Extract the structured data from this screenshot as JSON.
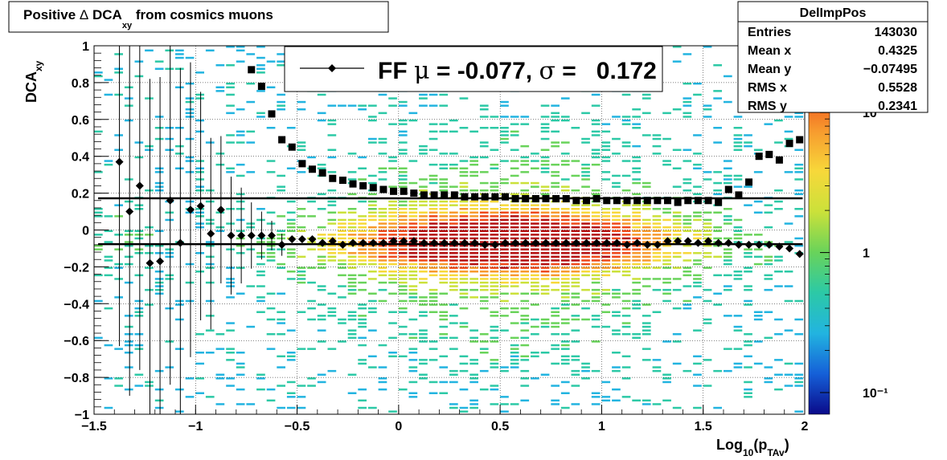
{
  "title": {
    "prefix": "Positive ",
    "delta": "Δ",
    "main": " DCA",
    "sub": "xy",
    "suffix": " from cosmics muons"
  },
  "stats": {
    "name": "DelImpPos",
    "rows": [
      {
        "label": "Entries",
        "value": "143030"
      },
      {
        "label": "Mean x",
        "value": "0.4325"
      },
      {
        "label": "Mean y",
        "value": "−0.07495"
      },
      {
        "label": "RMS x",
        "value": "0.5528"
      },
      {
        "label": "RMS y",
        "value": "0.2341"
      }
    ]
  },
  "legend": {
    "prefix": "FF ",
    "mu": "μ",
    "mid": " = -0.077, ",
    "sigma": "σ",
    "suffix": " =   0.172"
  },
  "axes": {
    "ylabel": "DCA",
    "ylabel_sub": "xy",
    "xlabel_a": "Log",
    "xlabel_b": "10",
    "xlabel_c": "(p",
    "xlabel_d": "TAv",
    "xlabel_e": ")"
  },
  "colors": {
    "markers": "#000000",
    "palette": [
      "#0a0a8a",
      "#1560d8",
      "#22b4e0",
      "#2cc9a6",
      "#69d35a",
      "#cbe13a",
      "#f7d83a",
      "#f79a2e",
      "#ee4a1a",
      "#b41010"
    ]
  },
  "chart_data": {
    "type": "heatmap",
    "xlim": [
      -1.5,
      2
    ],
    "ylim": [
      -1,
      1
    ],
    "x_ticks": [
      "−1.5",
      "−1",
      "−0.5",
      "0",
      "0.5",
      "1",
      "1.5",
      "2"
    ],
    "y_ticks": [
      "−1",
      "−0.8",
      "−0.6",
      "−0.4",
      "−0.2",
      "0",
      "0.2",
      "0.4",
      "0.6",
      "0.8",
      "1"
    ],
    "z_scale": "log",
    "z_ticks": [
      "10",
      "1",
      "10⁻¹"
    ],
    "z_range": [
      0.07,
      30
    ],
    "mean_line": -0.077,
    "sigma_line": 0.172,
    "mean_points": [
      [
        -1.375,
        0.37
      ],
      [
        -1.325,
        0.1
      ],
      [
        -1.275,
        0.24
      ],
      [
        -1.225,
        -0.18
      ],
      [
        -1.175,
        -0.17
      ],
      [
        -1.125,
        0.16
      ],
      [
        -1.075,
        -0.07
      ],
      [
        -1.025,
        0.11
      ],
      [
        -0.975,
        0.13
      ],
      [
        -0.925,
        -0.02
      ],
      [
        -0.875,
        0.11
      ],
      [
        -0.825,
        -0.03
      ],
      [
        -0.775,
        -0.03
      ],
      [
        -0.725,
        -0.03
      ],
      [
        -0.675,
        -0.03
      ],
      [
        -0.625,
        -0.03
      ],
      [
        -0.575,
        -0.08
      ],
      [
        -0.525,
        -0.05
      ],
      [
        -0.475,
        -0.05
      ],
      [
        -0.425,
        -0.05
      ],
      [
        -0.375,
        -0.07
      ],
      [
        -0.325,
        -0.06
      ],
      [
        -0.275,
        -0.08
      ],
      [
        -0.225,
        -0.07
      ],
      [
        -0.175,
        -0.07
      ],
      [
        -0.125,
        -0.07
      ],
      [
        -0.075,
        -0.07
      ],
      [
        -0.025,
        -0.06
      ],
      [
        0.025,
        -0.06
      ],
      [
        0.075,
        -0.06
      ],
      [
        0.125,
        -0.07
      ],
      [
        0.175,
        -0.07
      ],
      [
        0.225,
        -0.07
      ],
      [
        0.275,
        -0.07
      ],
      [
        0.325,
        -0.07
      ],
      [
        0.375,
        -0.07
      ],
      [
        0.425,
        -0.08
      ],
      [
        0.475,
        -0.08
      ],
      [
        0.525,
        -0.07
      ],
      [
        0.575,
        -0.07
      ],
      [
        0.625,
        -0.07
      ],
      [
        0.675,
        -0.07
      ],
      [
        0.725,
        -0.07
      ],
      [
        0.775,
        -0.07
      ],
      [
        0.825,
        -0.07
      ],
      [
        0.875,
        -0.07
      ],
      [
        0.925,
        -0.07
      ],
      [
        0.975,
        -0.07
      ],
      [
        1.025,
        -0.07
      ],
      [
        1.075,
        -0.07
      ],
      [
        1.125,
        -0.08
      ],
      [
        1.175,
        -0.07
      ],
      [
        1.225,
        -0.08
      ],
      [
        1.275,
        -0.08
      ],
      [
        1.325,
        -0.06
      ],
      [
        1.375,
        -0.06
      ],
      [
        1.425,
        -0.06
      ],
      [
        1.475,
        -0.07
      ],
      [
        1.525,
        -0.06
      ],
      [
        1.575,
        -0.07
      ],
      [
        1.625,
        -0.07
      ],
      [
        1.675,
        -0.08
      ],
      [
        1.725,
        -0.08
      ],
      [
        1.775,
        -0.08
      ],
      [
        1.825,
        -0.08
      ],
      [
        1.875,
        -0.09
      ],
      [
        1.925,
        -0.1
      ],
      [
        1.975,
        -0.13
      ]
    ],
    "sigma_points": [
      [
        -0.725,
        0.87
      ],
      [
        -0.675,
        0.78
      ],
      [
        -0.625,
        0.63
      ],
      [
        -0.575,
        0.49
      ],
      [
        -0.525,
        0.45
      ],
      [
        -0.475,
        0.36
      ],
      [
        -0.425,
        0.33
      ],
      [
        -0.375,
        0.31
      ],
      [
        -0.325,
        0.28
      ],
      [
        -0.275,
        0.27
      ],
      [
        -0.225,
        0.25
      ],
      [
        -0.175,
        0.24
      ],
      [
        -0.125,
        0.23
      ],
      [
        -0.075,
        0.22
      ],
      [
        -0.025,
        0.21
      ],
      [
        0.025,
        0.21
      ],
      [
        0.075,
        0.2
      ],
      [
        0.125,
        0.19
      ],
      [
        0.175,
        0.19
      ],
      [
        0.225,
        0.19
      ],
      [
        0.275,
        0.19
      ],
      [
        0.325,
        0.18
      ],
      [
        0.375,
        0.18
      ],
      [
        0.425,
        0.18
      ],
      [
        0.475,
        0.18
      ],
      [
        0.525,
        0.18
      ],
      [
        0.575,
        0.17
      ],
      [
        0.625,
        0.17
      ],
      [
        0.675,
        0.17
      ],
      [
        0.725,
        0.17
      ],
      [
        0.775,
        0.17
      ],
      [
        0.825,
        0.17
      ],
      [
        0.875,
        0.16
      ],
      [
        0.925,
        0.16
      ],
      [
        0.975,
        0.17
      ],
      [
        1.025,
        0.16
      ],
      [
        1.075,
        0.16
      ],
      [
        1.125,
        0.16
      ],
      [
        1.175,
        0.16
      ],
      [
        1.225,
        0.16
      ],
      [
        1.275,
        0.16
      ],
      [
        1.325,
        0.16
      ],
      [
        1.375,
        0.15
      ],
      [
        1.425,
        0.16
      ],
      [
        1.475,
        0.16
      ],
      [
        1.525,
        0.16
      ],
      [
        1.575,
        0.15
      ],
      [
        1.625,
        0.22
      ],
      [
        1.675,
        0.19
      ],
      [
        1.725,
        0.26
      ],
      [
        1.775,
        0.4
      ],
      [
        1.825,
        0.41
      ],
      [
        1.875,
        0.38
      ],
      [
        1.925,
        0.47
      ],
      [
        1.975,
        0.49
      ]
    ],
    "error_bars": [
      [
        -1.375,
        1.0
      ],
      [
        -1.325,
        1.0
      ],
      [
        -1.275,
        1.0
      ],
      [
        -1.225,
        1.0
      ],
      [
        -1.175,
        1.0
      ],
      [
        -1.125,
        1.0
      ],
      [
        -1.075,
        0.95
      ],
      [
        -1.025,
        0.8
      ],
      [
        -0.975,
        0.62
      ],
      [
        -0.925,
        0.52
      ],
      [
        -0.875,
        0.4
      ],
      [
        -0.825,
        0.32
      ],
      [
        -0.775,
        0.26
      ],
      [
        -0.725,
        0.18
      ],
      [
        -0.675,
        0.13
      ],
      [
        -0.625,
        0.08
      ],
      [
        -0.575,
        0.06
      ]
    ]
  }
}
